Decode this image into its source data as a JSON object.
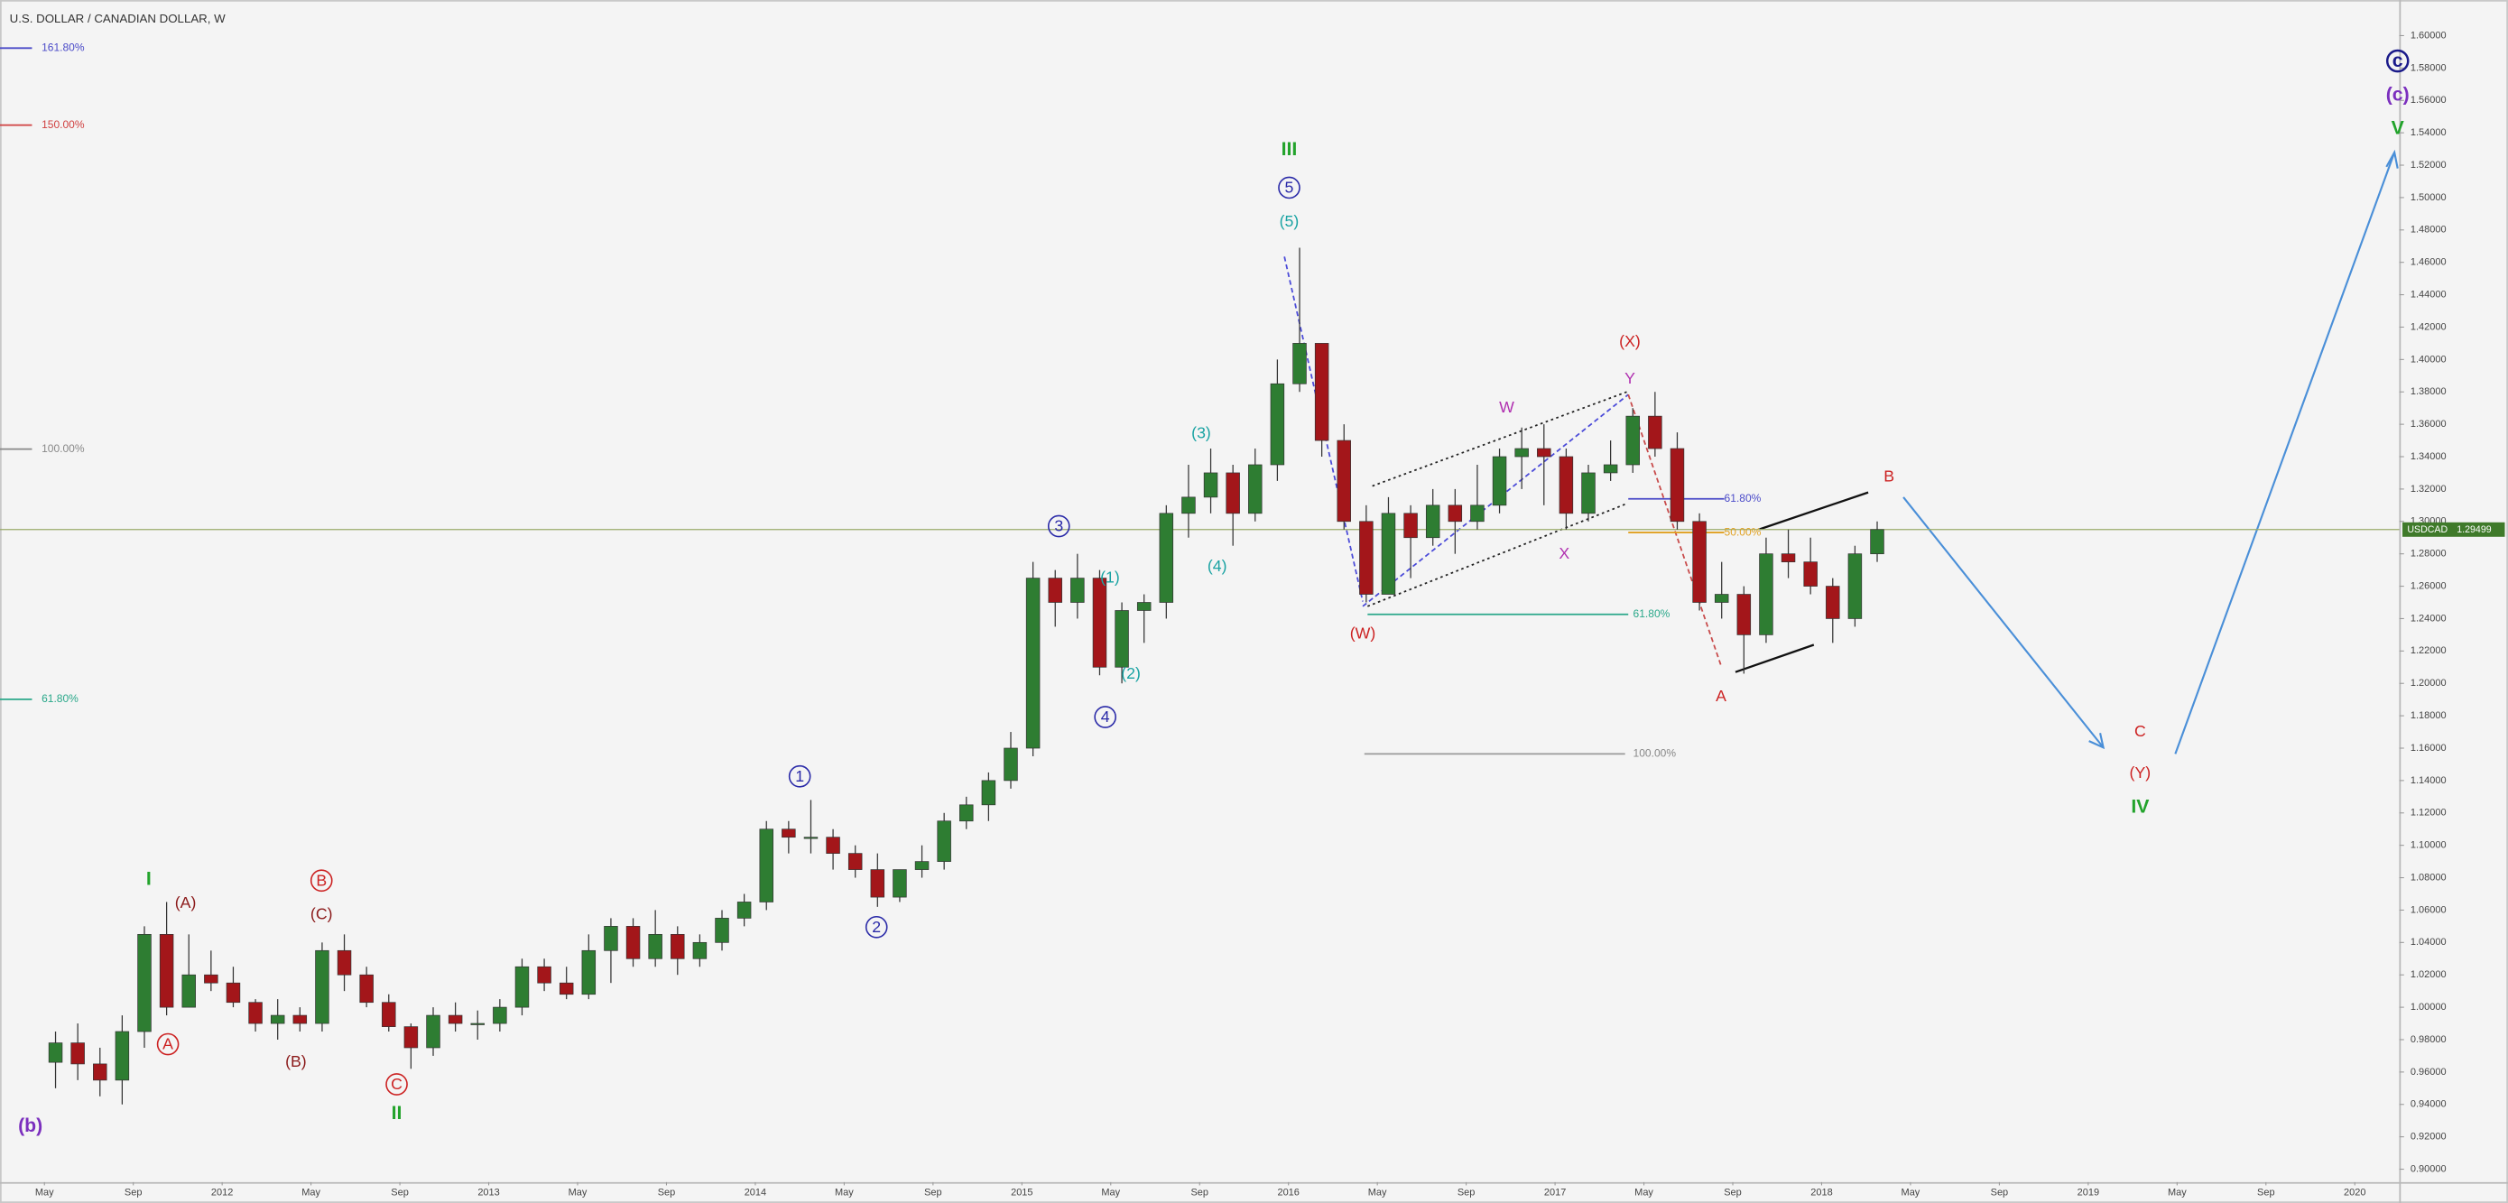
{
  "chart_data": {
    "type": "candlestick",
    "title": "U.S. DOLLAR / CANADIAN DOLLAR, W",
    "symbol": "USDCAD",
    "last_price": 1.29499,
    "last_price_label": "1.29499",
    "up_color": "#2e7d32",
    "down_color": "#a3161a",
    "last_price_color": "#3f7a2a",
    "xlim": [
      "2011-03",
      "2020-03"
    ],
    "ylim": [
      0.892,
      1.622
    ],
    "xticks": [
      {
        "value": "2011-05",
        "label": "May"
      },
      {
        "value": "2011-09",
        "label": "Sep"
      },
      {
        "value": "2012-01",
        "label": "2012"
      },
      {
        "value": "2012-05",
        "label": "May"
      },
      {
        "value": "2012-09",
        "label": "Sep"
      },
      {
        "value": "2013-01",
        "label": "2013"
      },
      {
        "value": "2013-05",
        "label": "May"
      },
      {
        "value": "2013-09",
        "label": "Sep"
      },
      {
        "value": "2014-01",
        "label": "2014"
      },
      {
        "value": "2014-05",
        "label": "May"
      },
      {
        "value": "2014-09",
        "label": "Sep"
      },
      {
        "value": "2015-01",
        "label": "2015"
      },
      {
        "value": "2015-05",
        "label": "May"
      },
      {
        "value": "2015-09",
        "label": "Sep"
      },
      {
        "value": "2016-01",
        "label": "2016"
      },
      {
        "value": "2016-05",
        "label": "May"
      },
      {
        "value": "2016-09",
        "label": "Sep"
      },
      {
        "value": "2017-01",
        "label": "2017"
      },
      {
        "value": "2017-05",
        "label": "May"
      },
      {
        "value": "2017-09",
        "label": "Sep"
      },
      {
        "value": "2018-01",
        "label": "2018"
      },
      {
        "value": "2018-05",
        "label": "May"
      },
      {
        "value": "2018-09",
        "label": "Sep"
      },
      {
        "value": "2019-01",
        "label": "2019"
      },
      {
        "value": "2019-05",
        "label": "May"
      },
      {
        "value": "2019-09",
        "label": "Sep"
      },
      {
        "value": "2020-01",
        "label": "2020"
      }
    ],
    "yticks": [
      {
        "value": 0.9,
        "label": "0.90000"
      },
      {
        "value": 0.92,
        "label": "0.92000"
      },
      {
        "value": 0.94,
        "label": "0.94000"
      },
      {
        "value": 0.96,
        "label": "0.96000"
      },
      {
        "value": 0.98,
        "label": "0.98000"
      },
      {
        "value": 1.0,
        "label": "1.00000"
      },
      {
        "value": 1.02,
        "label": "1.02000"
      },
      {
        "value": 1.04,
        "label": "1.04000"
      },
      {
        "value": 1.06,
        "label": "1.06000"
      },
      {
        "value": 1.08,
        "label": "1.08000"
      },
      {
        "value": 1.1,
        "label": "1.10000"
      },
      {
        "value": 1.12,
        "label": "1.12000"
      },
      {
        "value": 1.14,
        "label": "1.14000"
      },
      {
        "value": 1.16,
        "label": "1.16000"
      },
      {
        "value": 1.18,
        "label": "1.18000"
      },
      {
        "value": 1.2,
        "label": "1.20000"
      },
      {
        "value": 1.22,
        "label": "1.22000"
      },
      {
        "value": 1.24,
        "label": "1.24000"
      },
      {
        "value": 1.26,
        "label": "1.26000"
      },
      {
        "value": 1.28,
        "label": "1.28000"
      },
      {
        "value": 1.3,
        "label": "1.30000"
      },
      {
        "value": 1.32,
        "label": "1.32000"
      },
      {
        "value": 1.34,
        "label": "1.34000"
      },
      {
        "value": 1.36,
        "label": "1.36000"
      },
      {
        "value": 1.38,
        "label": "1.38000"
      },
      {
        "value": 1.4,
        "label": "1.40000"
      },
      {
        "value": 1.42,
        "label": "1.42000"
      },
      {
        "value": 1.44,
        "label": "1.44000"
      },
      {
        "value": 1.46,
        "label": "1.46000"
      },
      {
        "value": 1.48,
        "label": "1.48000"
      },
      {
        "value": 1.5,
        "label": "1.50000"
      },
      {
        "value": 1.52,
        "label": "1.52000"
      },
      {
        "value": 1.54,
        "label": "1.54000"
      },
      {
        "value": 1.56,
        "label": "1.56000"
      },
      {
        "value": 1.58,
        "label": "1.58000"
      },
      {
        "value": 1.6,
        "label": "1.60000"
      }
    ],
    "candles": [
      {
        "x": "2011-05",
        "open": 0.966,
        "high": 0.985,
        "low": 0.95,
        "close": 0.978
      },
      {
        "x": "2011-06",
        "open": 0.978,
        "high": 0.99,
        "low": 0.955,
        "close": 0.965
      },
      {
        "x": "2011-07",
        "open": 0.965,
        "high": 0.975,
        "low": 0.945,
        "close": 0.955
      },
      {
        "x": "2011-08",
        "open": 0.955,
        "high": 0.995,
        "low": 0.94,
        "close": 0.985
      },
      {
        "x": "2011-09",
        "open": 0.985,
        "high": 1.05,
        "low": 0.975,
        "close": 1.045
      },
      {
        "x": "2011-10",
        "open": 1.045,
        "high": 1.065,
        "low": 0.995,
        "close": 1.0
      },
      {
        "x": "2011-11",
        "open": 1.0,
        "high": 1.045,
        "low": 1.0,
        "close": 1.02
      },
      {
        "x": "2011-12",
        "open": 1.02,
        "high": 1.035,
        "low": 1.01,
        "close": 1.015
      },
      {
        "x": "2012-01",
        "open": 1.015,
        "high": 1.025,
        "low": 1.0,
        "close": 1.003
      },
      {
        "x": "2012-02",
        "open": 1.003,
        "high": 1.005,
        "low": 0.985,
        "close": 0.99
      },
      {
        "x": "2012-03",
        "open": 0.99,
        "high": 1.005,
        "low": 0.98,
        "close": 0.995
      },
      {
        "x": "2012-04",
        "open": 0.995,
        "high": 1.0,
        "low": 0.985,
        "close": 0.99
      },
      {
        "x": "2012-05",
        "open": 0.99,
        "high": 1.04,
        "low": 0.985,
        "close": 1.035
      },
      {
        "x": "2012-06",
        "open": 1.035,
        "high": 1.045,
        "low": 1.01,
        "close": 1.02
      },
      {
        "x": "2012-07",
        "open": 1.02,
        "high": 1.025,
        "low": 1.0,
        "close": 1.003
      },
      {
        "x": "2012-08",
        "open": 1.003,
        "high": 1.008,
        "low": 0.985,
        "close": 0.988
      },
      {
        "x": "2012-09",
        "open": 0.988,
        "high": 0.99,
        "low": 0.962,
        "close": 0.975
      },
      {
        "x": "2012-10",
        "open": 0.975,
        "high": 1.0,
        "low": 0.97,
        "close": 0.995
      },
      {
        "x": "2012-11",
        "open": 0.995,
        "high": 1.003,
        "low": 0.985,
        "close": 0.99
      },
      {
        "x": "2012-12",
        "open": 0.99,
        "high": 0.998,
        "low": 0.98,
        "close": 0.99
      },
      {
        "x": "2013-01",
        "open": 0.99,
        "high": 1.005,
        "low": 0.985,
        "close": 1.0
      },
      {
        "x": "2013-02",
        "open": 1.0,
        "high": 1.03,
        "low": 0.995,
        "close": 1.025
      },
      {
        "x": "2013-03",
        "open": 1.025,
        "high": 1.03,
        "low": 1.01,
        "close": 1.015
      },
      {
        "x": "2013-04",
        "open": 1.015,
        "high": 1.025,
        "low": 1.005,
        "close": 1.008
      },
      {
        "x": "2013-05",
        "open": 1.008,
        "high": 1.045,
        "low": 1.005,
        "close": 1.035
      },
      {
        "x": "2013-06",
        "open": 1.035,
        "high": 1.055,
        "low": 1.015,
        "close": 1.05
      },
      {
        "x": "2013-07",
        "open": 1.05,
        "high": 1.055,
        "low": 1.025,
        "close": 1.03
      },
      {
        "x": "2013-08",
        "open": 1.03,
        "high": 1.06,
        "low": 1.025,
        "close": 1.045
      },
      {
        "x": "2013-09",
        "open": 1.045,
        "high": 1.05,
        "low": 1.02,
        "close": 1.03
      },
      {
        "x": "2013-10",
        "open": 1.03,
        "high": 1.045,
        "low": 1.025,
        "close": 1.04
      },
      {
        "x": "2013-11",
        "open": 1.04,
        "high": 1.06,
        "low": 1.035,
        "close": 1.055
      },
      {
        "x": "2013-12",
        "open": 1.055,
        "high": 1.07,
        "low": 1.05,
        "close": 1.065
      },
      {
        "x": "2014-01",
        "open": 1.065,
        "high": 1.115,
        "low": 1.06,
        "close": 1.11
      },
      {
        "x": "2014-02",
        "open": 1.11,
        "high": 1.115,
        "low": 1.095,
        "close": 1.105
      },
      {
        "x": "2014-03",
        "open": 1.105,
        "high": 1.128,
        "low": 1.095,
        "close": 1.105
      },
      {
        "x": "2014-04",
        "open": 1.105,
        "high": 1.11,
        "low": 1.085,
        "close": 1.095
      },
      {
        "x": "2014-05",
        "open": 1.095,
        "high": 1.1,
        "low": 1.08,
        "close": 1.085
      },
      {
        "x": "2014-06",
        "open": 1.085,
        "high": 1.095,
        "low": 1.062,
        "close": 1.068
      },
      {
        "x": "2014-07",
        "open": 1.068,
        "high": 1.085,
        "low": 1.065,
        "close": 1.085
      },
      {
        "x": "2014-08",
        "open": 1.085,
        "high": 1.1,
        "low": 1.08,
        "close": 1.09
      },
      {
        "x": "2014-09",
        "open": 1.09,
        "high": 1.12,
        "low": 1.085,
        "close": 1.115
      },
      {
        "x": "2014-10",
        "open": 1.115,
        "high": 1.13,
        "low": 1.11,
        "close": 1.125
      },
      {
        "x": "2014-11",
        "open": 1.125,
        "high": 1.145,
        "low": 1.115,
        "close": 1.14
      },
      {
        "x": "2014-12",
        "open": 1.14,
        "high": 1.17,
        "low": 1.135,
        "close": 1.16
      },
      {
        "x": "2015-01",
        "open": 1.16,
        "high": 1.275,
        "low": 1.155,
        "close": 1.265
      },
      {
        "x": "2015-02",
        "open": 1.265,
        "high": 1.27,
        "low": 1.235,
        "close": 1.25
      },
      {
        "x": "2015-03",
        "open": 1.25,
        "high": 1.28,
        "low": 1.24,
        "close": 1.265
      },
      {
        "x": "2015-04",
        "open": 1.265,
        "high": 1.27,
        "low": 1.205,
        "close": 1.21
      },
      {
        "x": "2015-05",
        "open": 1.21,
        "high": 1.25,
        "low": 1.2,
        "close": 1.245
      },
      {
        "x": "2015-06",
        "open": 1.245,
        "high": 1.255,
        "low": 1.225,
        "close": 1.25
      },
      {
        "x": "2015-07",
        "open": 1.25,
        "high": 1.31,
        "low": 1.24,
        "close": 1.305
      },
      {
        "x": "2015-08",
        "open": 1.305,
        "high": 1.335,
        "low": 1.29,
        "close": 1.315
      },
      {
        "x": "2015-09",
        "open": 1.315,
        "high": 1.345,
        "low": 1.305,
        "close": 1.33
      },
      {
        "x": "2015-10",
        "open": 1.33,
        "high": 1.335,
        "low": 1.285,
        "close": 1.305
      },
      {
        "x": "2015-11",
        "open": 1.305,
        "high": 1.345,
        "low": 1.3,
        "close": 1.335
      },
      {
        "x": "2015-12",
        "open": 1.335,
        "high": 1.4,
        "low": 1.325,
        "close": 1.385
      },
      {
        "x": "2016-01",
        "open": 1.385,
        "high": 1.469,
        "low": 1.38,
        "close": 1.41
      },
      {
        "x": "2016-02",
        "open": 1.41,
        "high": 1.41,
        "low": 1.34,
        "close": 1.35
      },
      {
        "x": "2016-03",
        "open": 1.35,
        "high": 1.36,
        "low": 1.295,
        "close": 1.3
      },
      {
        "x": "2016-04",
        "open": 1.3,
        "high": 1.31,
        "low": 1.25,
        "close": 1.255
      },
      {
        "x": "2016-05",
        "open": 1.255,
        "high": 1.315,
        "low": 1.255,
        "close": 1.305
      },
      {
        "x": "2016-06",
        "open": 1.305,
        "high": 1.31,
        "low": 1.265,
        "close": 1.29
      },
      {
        "x": "2016-07",
        "open": 1.29,
        "high": 1.32,
        "low": 1.285,
        "close": 1.31
      },
      {
        "x": "2016-08",
        "open": 1.31,
        "high": 1.32,
        "low": 1.28,
        "close": 1.3
      },
      {
        "x": "2016-09",
        "open": 1.3,
        "high": 1.335,
        "low": 1.295,
        "close": 1.31
      },
      {
        "x": "2016-10",
        "open": 1.31,
        "high": 1.345,
        "low": 1.305,
        "close": 1.34
      },
      {
        "x": "2016-11",
        "open": 1.34,
        "high": 1.358,
        "low": 1.32,
        "close": 1.345
      },
      {
        "x": "2016-12",
        "open": 1.345,
        "high": 1.36,
        "low": 1.31,
        "close": 1.34
      },
      {
        "x": "2017-01",
        "open": 1.34,
        "high": 1.345,
        "low": 1.295,
        "close": 1.305
      },
      {
        "x": "2017-02",
        "open": 1.305,
        "high": 1.335,
        "low": 1.3,
        "close": 1.33
      },
      {
        "x": "2017-03",
        "open": 1.33,
        "high": 1.35,
        "low": 1.325,
        "close": 1.335
      },
      {
        "x": "2017-04",
        "open": 1.335,
        "high": 1.37,
        "low": 1.33,
        "close": 1.365
      },
      {
        "x": "2017-05",
        "open": 1.365,
        "high": 1.38,
        "low": 1.34,
        "close": 1.345
      },
      {
        "x": "2017-06",
        "open": 1.345,
        "high": 1.355,
        "low": 1.295,
        "close": 1.3
      },
      {
        "x": "2017-07",
        "open": 1.3,
        "high": 1.305,
        "low": 1.245,
        "close": 1.25
      },
      {
        "x": "2017-08",
        "open": 1.25,
        "high": 1.275,
        "low": 1.24,
        "close": 1.255
      },
      {
        "x": "2017-09",
        "open": 1.255,
        "high": 1.26,
        "low": 1.206,
        "close": 1.23
      },
      {
        "x": "2017-10",
        "open": 1.23,
        "high": 1.29,
        "low": 1.225,
        "close": 1.28
      },
      {
        "x": "2017-11",
        "open": 1.28,
        "high": 1.295,
        "low": 1.265,
        "close": 1.275
      },
      {
        "x": "2017-12",
        "open": 1.275,
        "high": 1.29,
        "low": 1.255,
        "close": 1.26
      },
      {
        "x": "2018-01",
        "open": 1.26,
        "high": 1.265,
        "low": 1.225,
        "close": 1.24
      },
      {
        "x": "2018-02",
        "open": 1.24,
        "high": 1.285,
        "low": 1.235,
        "close": 1.28
      },
      {
        "x": "2018-03",
        "open": 1.28,
        "high": 1.3,
        "low": 1.275,
        "close": 1.295
      }
    ],
    "annotations": [
      {
        "text": "(b)",
        "color": "#7b2fbe",
        "bold": true
      },
      {
        "text": "I",
        "color": "#22a32b",
        "bold": true
      },
      {
        "text": "(A)",
        "color": "#8b1a1a"
      },
      {
        "text": "A",
        "color": "#cc2222",
        "circled": true
      },
      {
        "text": "B",
        "color": "#cc2222",
        "circled": true
      },
      {
        "text": "(C)",
        "color": "#8b1a1a"
      },
      {
        "text": "(B)",
        "color": "#8b1a1a"
      },
      {
        "text": "C",
        "color": "#cc2222",
        "circled": true
      },
      {
        "text": "II",
        "color": "#22a32b",
        "bold": true
      },
      {
        "text": "1",
        "color": "#2a2aa8",
        "circled": true
      },
      {
        "text": "2",
        "color": "#2a2aa8",
        "circled": true
      },
      {
        "text": "3",
        "color": "#2a2aa8",
        "circled": true
      },
      {
        "text": "4",
        "color": "#2a2aa8",
        "circled": true
      },
      {
        "text": "(1)",
        "color": "#1aa3a3"
      },
      {
        "text": "(2)",
        "color": "#1aa3a3"
      },
      {
        "text": "(3)",
        "color": "#1aa3a3"
      },
      {
        "text": "(4)",
        "color": "#1aa3a3"
      },
      {
        "text": "III",
        "color": "#22a32b",
        "bold": true
      },
      {
        "text": "5",
        "color": "#2a2aa8",
        "circled": true
      },
      {
        "text": "(5)",
        "color": "#1aa3a3"
      },
      {
        "text": "(W)",
        "color": "#cc2222"
      },
      {
        "text": "W",
        "color": "#b030b0"
      },
      {
        "text": "X",
        "color": "#b030b0"
      },
      {
        "text": "Y",
        "color": "#b030b0"
      },
      {
        "text": "(X)",
        "color": "#cc2222"
      },
      {
        "text": "A",
        "color": "#cc2222"
      },
      {
        "text": "B",
        "color": "#cc2222"
      },
      {
        "text": "C",
        "color": "#cc2222"
      },
      {
        "text": "(Y)",
        "color": "#cc2222"
      },
      {
        "text": "IV",
        "color": "#22a32b",
        "bold": true
      },
      {
        "text": "c",
        "color": "#1a1a8a",
        "circled": true,
        "bold": true
      },
      {
        "text": "(c)",
        "color": "#7b2fbe",
        "bold": true
      },
      {
        "text": "V",
        "color": "#22a32b",
        "bold": true
      }
    ],
    "fib_labels": [
      {
        "text": "161.80%",
        "color": "#4a4ac8"
      },
      {
        "text": "150.00%",
        "color": "#d04040"
      },
      {
        "text": "100.00%",
        "color": "#888888"
      },
      {
        "text": "61.80%",
        "color": "#2aa88a"
      },
      {
        "text": "61.80%",
        "color": "#4a4ac8"
      },
      {
        "text": "50.00%",
        "color": "#e0a020"
      },
      {
        "text": "61.80%",
        "color": "#2aa88a"
      },
      {
        "text": "100.00%",
        "color": "#888888"
      }
    ]
  }
}
